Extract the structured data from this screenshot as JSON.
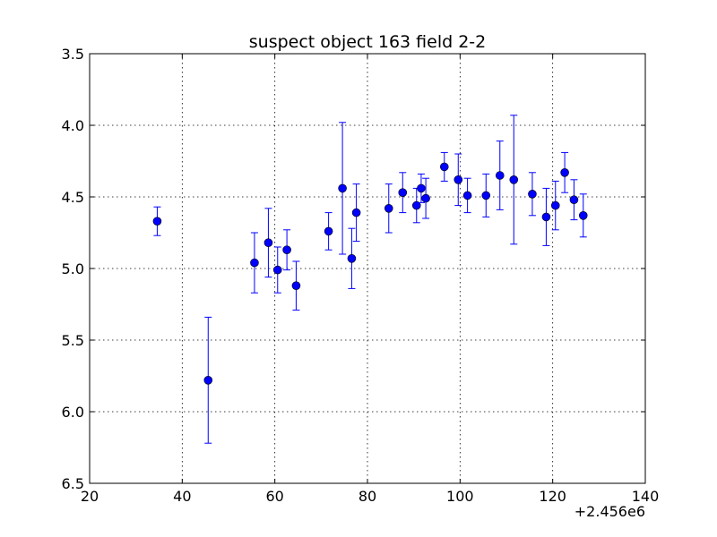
{
  "chart_data": {
    "type": "scatter",
    "title": "suspect object 163 field 2-2",
    "xlabel": "",
    "ylabel": "",
    "x_offset_text": "+2.456e6",
    "xlim": [
      20,
      140
    ],
    "ylim": [
      6.5,
      3.5
    ],
    "y_inverted": true,
    "grid": true,
    "marker_color": "#0000ff",
    "xticks": [
      "20",
      "40",
      "60",
      "80",
      "100",
      "120",
      "140"
    ],
    "yticks": [
      "3.5",
      "4.0",
      "4.5",
      "5.0",
      "5.5",
      "6.0",
      "6.5"
    ],
    "points": [
      {
        "x": 34.6,
        "y": 4.67,
        "err": 0.1
      },
      {
        "x": 45.6,
        "y": 5.78,
        "err": 0.44
      },
      {
        "x": 55.6,
        "y": 4.96,
        "err": 0.21
      },
      {
        "x": 58.6,
        "y": 4.82,
        "err": 0.24
      },
      {
        "x": 60.6,
        "y": 5.01,
        "err": 0.16
      },
      {
        "x": 62.6,
        "y": 4.87,
        "err": 0.14
      },
      {
        "x": 64.6,
        "y": 5.12,
        "err": 0.17
      },
      {
        "x": 71.6,
        "y": 4.74,
        "err": 0.13
      },
      {
        "x": 74.6,
        "y": 4.44,
        "err": 0.46
      },
      {
        "x": 76.6,
        "y": 4.93,
        "err": 0.21
      },
      {
        "x": 77.6,
        "y": 4.61,
        "err": 0.2
      },
      {
        "x": 84.6,
        "y": 4.58,
        "err": 0.17
      },
      {
        "x": 87.6,
        "y": 4.47,
        "err": 0.14
      },
      {
        "x": 90.6,
        "y": 4.56,
        "err": 0.12
      },
      {
        "x": 91.6,
        "y": 4.44,
        "err": 0.1
      },
      {
        "x": 92.6,
        "y": 4.51,
        "err": 0.14
      },
      {
        "x": 96.6,
        "y": 4.29,
        "err": 0.1
      },
      {
        "x": 99.6,
        "y": 4.38,
        "err": 0.18
      },
      {
        "x": 101.6,
        "y": 4.49,
        "err": 0.12
      },
      {
        "x": 105.6,
        "y": 4.49,
        "err": 0.15
      },
      {
        "x": 108.6,
        "y": 4.35,
        "err": 0.24
      },
      {
        "x": 111.6,
        "y": 4.38,
        "err": 0.45
      },
      {
        "x": 115.6,
        "y": 4.48,
        "err": 0.15
      },
      {
        "x": 118.6,
        "y": 4.64,
        "err": 0.2
      },
      {
        "x": 120.6,
        "y": 4.56,
        "err": 0.17
      },
      {
        "x": 122.6,
        "y": 4.33,
        "err": 0.14
      },
      {
        "x": 124.6,
        "y": 4.52,
        "err": 0.14
      },
      {
        "x": 126.6,
        "y": 4.63,
        "err": 0.15
      }
    ]
  }
}
